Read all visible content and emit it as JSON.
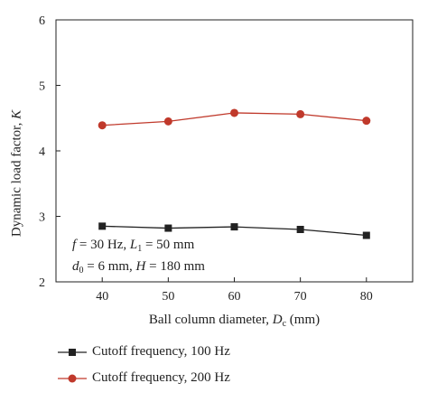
{
  "chart_data": {
    "type": "line",
    "x": [
      40,
      50,
      60,
      70,
      80
    ],
    "xlabel_text": "Ball column diameter,",
    "xlabel_var": "D",
    "xlabel_sub": "c",
    "xlabel_unit": "(mm)",
    "ylabel_text": "Dynamic load factor,",
    "ylabel_var": "K",
    "xlim": [
      33,
      87
    ],
    "ylim": [
      2,
      6
    ],
    "xticks": [
      "40",
      "50",
      "60",
      "70",
      "80"
    ],
    "yticks": [
      "2",
      "3",
      "4",
      "5",
      "6"
    ],
    "series": [
      {
        "name": "Cutoff frequency, 100 Hz",
        "color": "#222222",
        "marker": "square",
        "values": [
          2.85,
          2.82,
          2.84,
          2.8,
          2.71
        ]
      },
      {
        "name": "Cutoff frequency, 200 Hz",
        "color": "#c0392b",
        "marker": "circle",
        "values": [
          4.39,
          4.45,
          4.58,
          4.56,
          4.46
        ]
      }
    ],
    "annotation": {
      "line1": {
        "f_var": "f",
        "f_val": " = 30 Hz, ",
        "L_var": "L",
        "L_sub": "1",
        "L_val": " = 50 mm"
      },
      "line2": {
        "d_var": "d",
        "d_sub": "0",
        "d_val": " = 6 mm, ",
        "H_var": "H",
        "H_val": " = 180 mm"
      }
    },
    "legend_position": "bottom"
  }
}
